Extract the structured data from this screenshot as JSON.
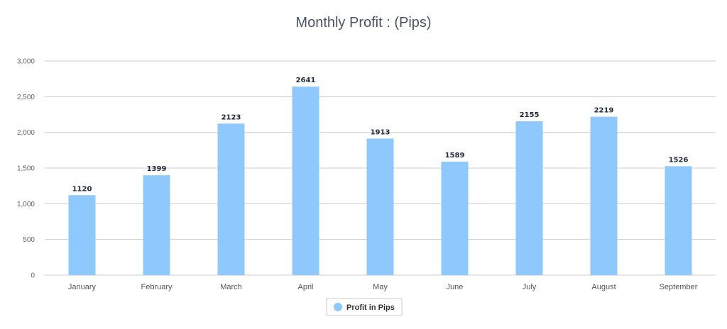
{
  "chart_data": {
    "type": "bar",
    "title": "Monthly Profit : (Pips)",
    "categories": [
      "January",
      "February",
      "March",
      "April",
      "May",
      "June",
      "July",
      "August",
      "September"
    ],
    "series": [
      {
        "name": "Profit in Pips",
        "values": [
          1120,
          1399,
          2123,
          2641,
          1913,
          1589,
          2155,
          2219,
          1526
        ],
        "color": "#8ec8fc"
      }
    ],
    "ylim": [
      0,
      3000
    ],
    "yticks": [
      "0",
      "500",
      "1,000",
      "1,500",
      "2,000",
      "2,500",
      "3,000"
    ],
    "ytick_values": [
      0,
      500,
      1000,
      1500,
      2000,
      2500,
      3000
    ],
    "grid": true,
    "legend_position": "bottom-center",
    "gridline_color": "#cccccc"
  }
}
